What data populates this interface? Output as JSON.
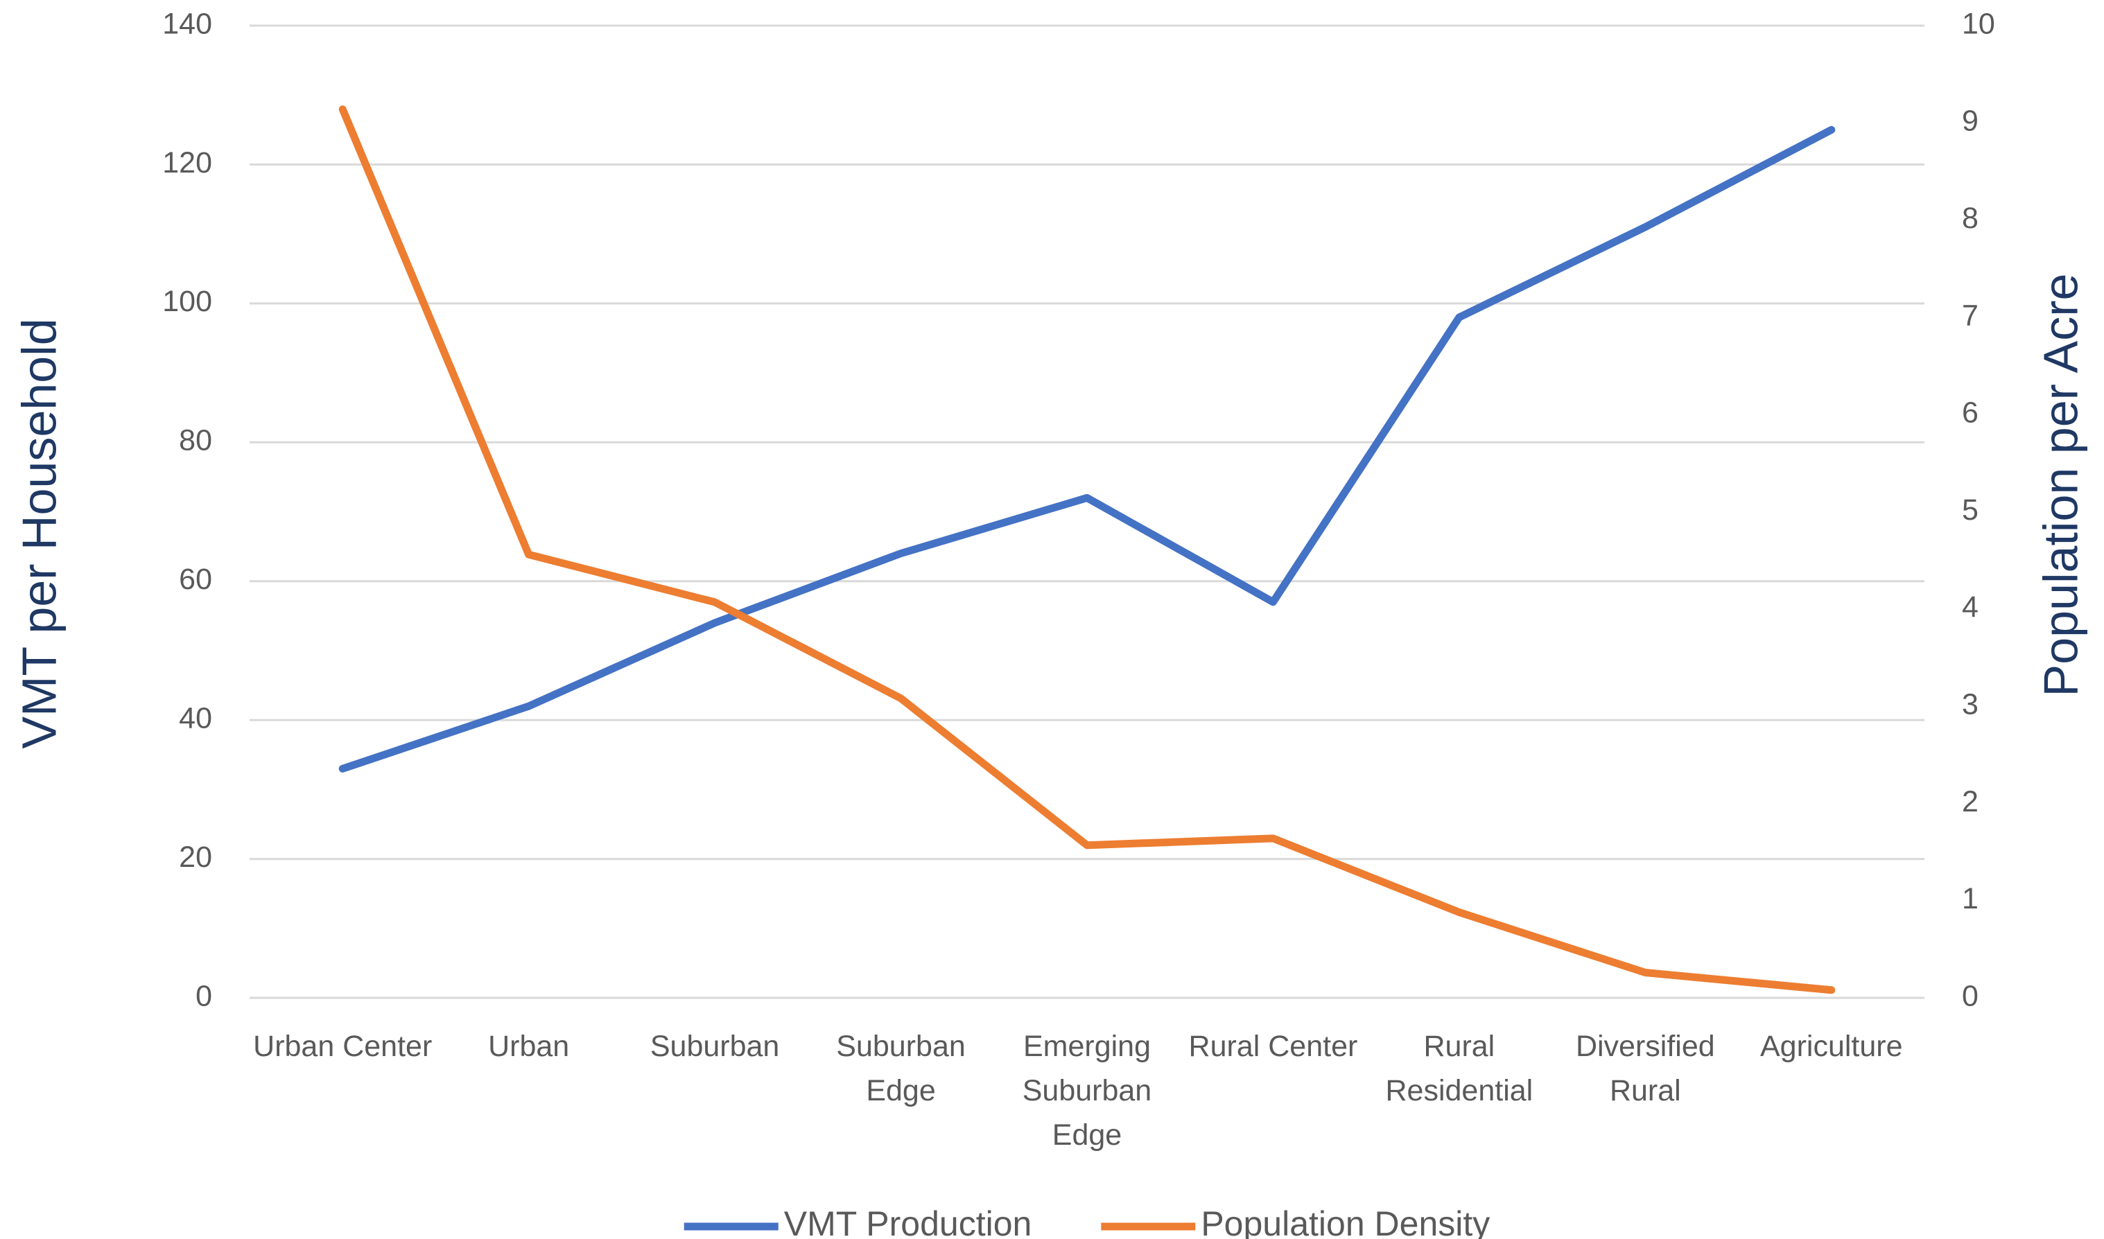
{
  "chart_data": {
    "type": "line",
    "y_label": "VMT per Household",
    "y2_label": "Population per Acre",
    "categories": [
      "Urban Center",
      "Urban",
      "Suburban",
      "Suburban Edge",
      "Emerging Suburban Edge",
      "Rural Center",
      "Rural Residential",
      "Diversified Rural",
      "Agriculture"
    ],
    "series": [
      {
        "name": "VMT Production",
        "color": "#4472c4",
        "values": [
          33,
          42,
          54,
          64,
          72,
          57,
          98,
          111,
          125
        ]
      },
      {
        "name": "Population Density",
        "color": "#ed7d31",
        "axis": "y2",
        "values": [
          9.14,
          4.56,
          4.07,
          3.08,
          1.57,
          1.64,
          0.88,
          0.26,
          0.08
        ]
      }
    ],
    "ylim": [
      0,
      140
    ],
    "yticks": [
      0,
      20,
      40,
      60,
      80,
      100,
      120,
      140
    ],
    "y2lim": [
      0,
      10
    ],
    "y2ticks": [
      0,
      1,
      2,
      3,
      4,
      5,
      6,
      7,
      8,
      9,
      10
    ],
    "grid": true,
    "legend": "bottom"
  }
}
